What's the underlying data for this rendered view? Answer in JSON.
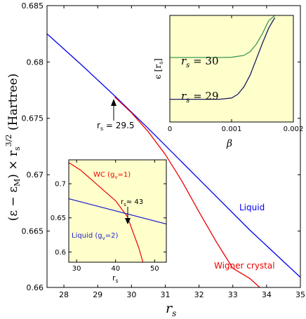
{
  "chart_data": [
    {
      "id": "main",
      "type": "line",
      "xlabel": "r",
      "xlabel_sub": "s",
      "ylabel_parts": [
        "(ε − ε",
        "M",
        ") × r",
        "s",
        "3/2",
        " (Hartree)"
      ],
      "xlim": [
        27.5,
        35
      ],
      "ylim": [
        0.66,
        0.685
      ],
      "xticks": [
        28,
        29,
        30,
        31,
        32,
        33,
        34,
        35
      ],
      "xtick_labels": [
        "28",
        "29",
        "30",
        "31",
        "32",
        "33",
        "34",
        "35"
      ],
      "yticks": [
        0.66,
        0.665,
        0.67,
        0.675,
        0.68,
        0.685
      ],
      "ytick_labels": [
        "0.66",
        "0.665",
        "0.67",
        "0.675",
        "0.68",
        "0.685"
      ],
      "series": [
        {
          "name": "Liquid",
          "color": "#0000ee",
          "x": [
            27.5,
            28.5,
            29.5,
            30.5,
            31.5,
            32.5,
            33.5,
            34.5,
            35.0
          ],
          "y": [
            0.6825,
            0.6798,
            0.677,
            0.6741,
            0.6711,
            0.6681,
            0.6651,
            0.6623,
            0.6609
          ]
        },
        {
          "name": "Wigner crystal",
          "color": "#ee0000",
          "x": [
            29.5,
            30.0,
            30.5,
            31.0,
            31.5,
            32.0,
            32.5,
            33.0,
            33.5,
            33.8
          ],
          "y": [
            0.6769,
            0.6755,
            0.6738,
            0.6718,
            0.6694,
            0.6667,
            0.6641,
            0.6617,
            0.6608,
            0.66
          ]
        }
      ],
      "annotations": [
        {
          "text": "r",
          "sub": "s",
          "rest": " = 29.5"
        },
        {
          "text": "Liquid"
        },
        {
          "text": "Wigner crystal"
        }
      ]
    },
    {
      "id": "inset_left",
      "type": "line",
      "background": "#ffffcc",
      "xlabel": "r",
      "xlabel_sub": "s",
      "xlim": [
        28,
        53
      ],
      "ylim": [
        0.585,
        0.735
      ],
      "xticks": [
        30,
        40,
        50
      ],
      "xtick_labels": [
        "30",
        "40",
        "50"
      ],
      "yticks": [
        0.6,
        0.65,
        0.7
      ],
      "ytick_labels": [
        "0.6",
        "0.65",
        "0.7"
      ],
      "series": [
        {
          "name": "WC (g_v=1)",
          "color": "#ee0000",
          "x": [
            28,
            31,
            34,
            37,
            40,
            43,
            46,
            47
          ],
          "y": [
            0.731,
            0.72,
            0.705,
            0.69,
            0.675,
            0.652,
            0.605,
            0.585
          ]
        },
        {
          "name": "Liquid (g_v=2)",
          "color": "#2222cc",
          "x": [
            28,
            53
          ],
          "y": [
            0.678,
            0.641
          ]
        }
      ],
      "annotations": [
        {
          "text": "WC (g",
          "sub": "v",
          "rest": "=1)"
        },
        {
          "text": "Liquid (g",
          "sub": "v",
          "rest": "=2)"
        },
        {
          "text": "r",
          "sub": "s",
          "rest": "≈ 43"
        }
      ]
    },
    {
      "id": "inset_right",
      "type": "line",
      "background": "#ffffcc",
      "xlabel": "β",
      "ylabel_parts": [
        "ϵ [r",
        "s",
        "]"
      ],
      "xlim": [
        0,
        0.002
      ],
      "xticks": [
        0,
        0.001,
        0.002
      ],
      "xtick_labels": [
        "0",
        "0.001",
        "0.002"
      ],
      "yticks": [],
      "series": [
        {
          "name": "r_s = 30",
          "color": "#3a9a5a",
          "x": [
            0,
            0.0002,
            0.0004,
            0.0006,
            0.0008,
            0.001,
            0.0012,
            0.0013,
            0.0014,
            0.0015,
            0.0016,
            0.0017
          ],
          "y": [
            0.605,
            0.605,
            0.605,
            0.605,
            0.605,
            0.607,
            0.625,
            0.66,
            0.73,
            0.83,
            0.95,
            1.0
          ]
        },
        {
          "name": "r_s = 29",
          "color": "#1a1a66",
          "x": [
            0,
            0.0002,
            0.0004,
            0.0006,
            0.0008,
            0.001,
            0.0011,
            0.0012,
            0.0013,
            0.0014,
            0.0015,
            0.0016,
            0.0017
          ],
          "y": [
            0.213,
            0.213,
            0.213,
            0.213,
            0.213,
            0.225,
            0.26,
            0.33,
            0.44,
            0.59,
            0.74,
            0.88,
            0.98
          ]
        }
      ],
      "annotations": [
        {
          "text": "r",
          "sub": "s",
          "rest": " = 30"
        },
        {
          "text": "r",
          "sub": "s",
          "rest": " = 29"
        }
      ]
    }
  ]
}
